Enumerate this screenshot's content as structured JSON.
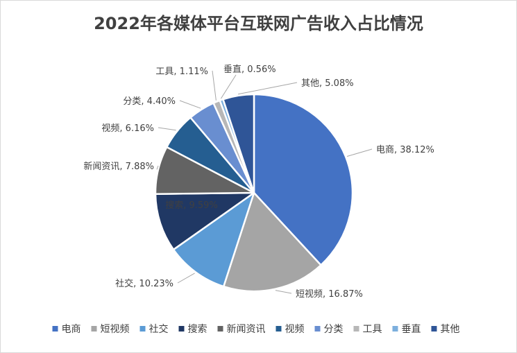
{
  "chart_data": {
    "type": "pie",
    "title": "2022年各媒体平台互联网广告收入占比情况",
    "slices": [
      {
        "name": "电商",
        "value": 38.12,
        "label": "电商, 38.12%",
        "color": "#4472C4"
      },
      {
        "name": "短视频",
        "value": 16.87,
        "label": "短视频, 16.87%",
        "color": "#A5A5A5"
      },
      {
        "name": "社交",
        "value": 10.23,
        "label": "社交, 10.23%",
        "color": "#5B9BD5"
      },
      {
        "name": "搜索",
        "value": 9.59,
        "label": "搜索, 9.59%",
        "color": "#203864"
      },
      {
        "name": "新闻资讯",
        "value": 7.88,
        "label": "新闻资讯, 7.88%",
        "color": "#636363"
      },
      {
        "name": "视频",
        "value": 6.16,
        "label": "视频, 6.16%",
        "color": "#255E91"
      },
      {
        "name": "分类",
        "value": 4.4,
        "label": "分类, 4.40%",
        "color": "#698ED0"
      },
      {
        "name": "工具",
        "value": 1.11,
        "label": "工具, 1.11%",
        "color": "#B7B7B7"
      },
      {
        "name": "垂直",
        "value": 0.56,
        "label": "垂直, 0.56%",
        "color": "#7CAFDD"
      },
      {
        "name": "其他",
        "value": 5.08,
        "label": "其他, 5.08%",
        "color": "#2F5597"
      }
    ],
    "legend_position": "bottom"
  }
}
